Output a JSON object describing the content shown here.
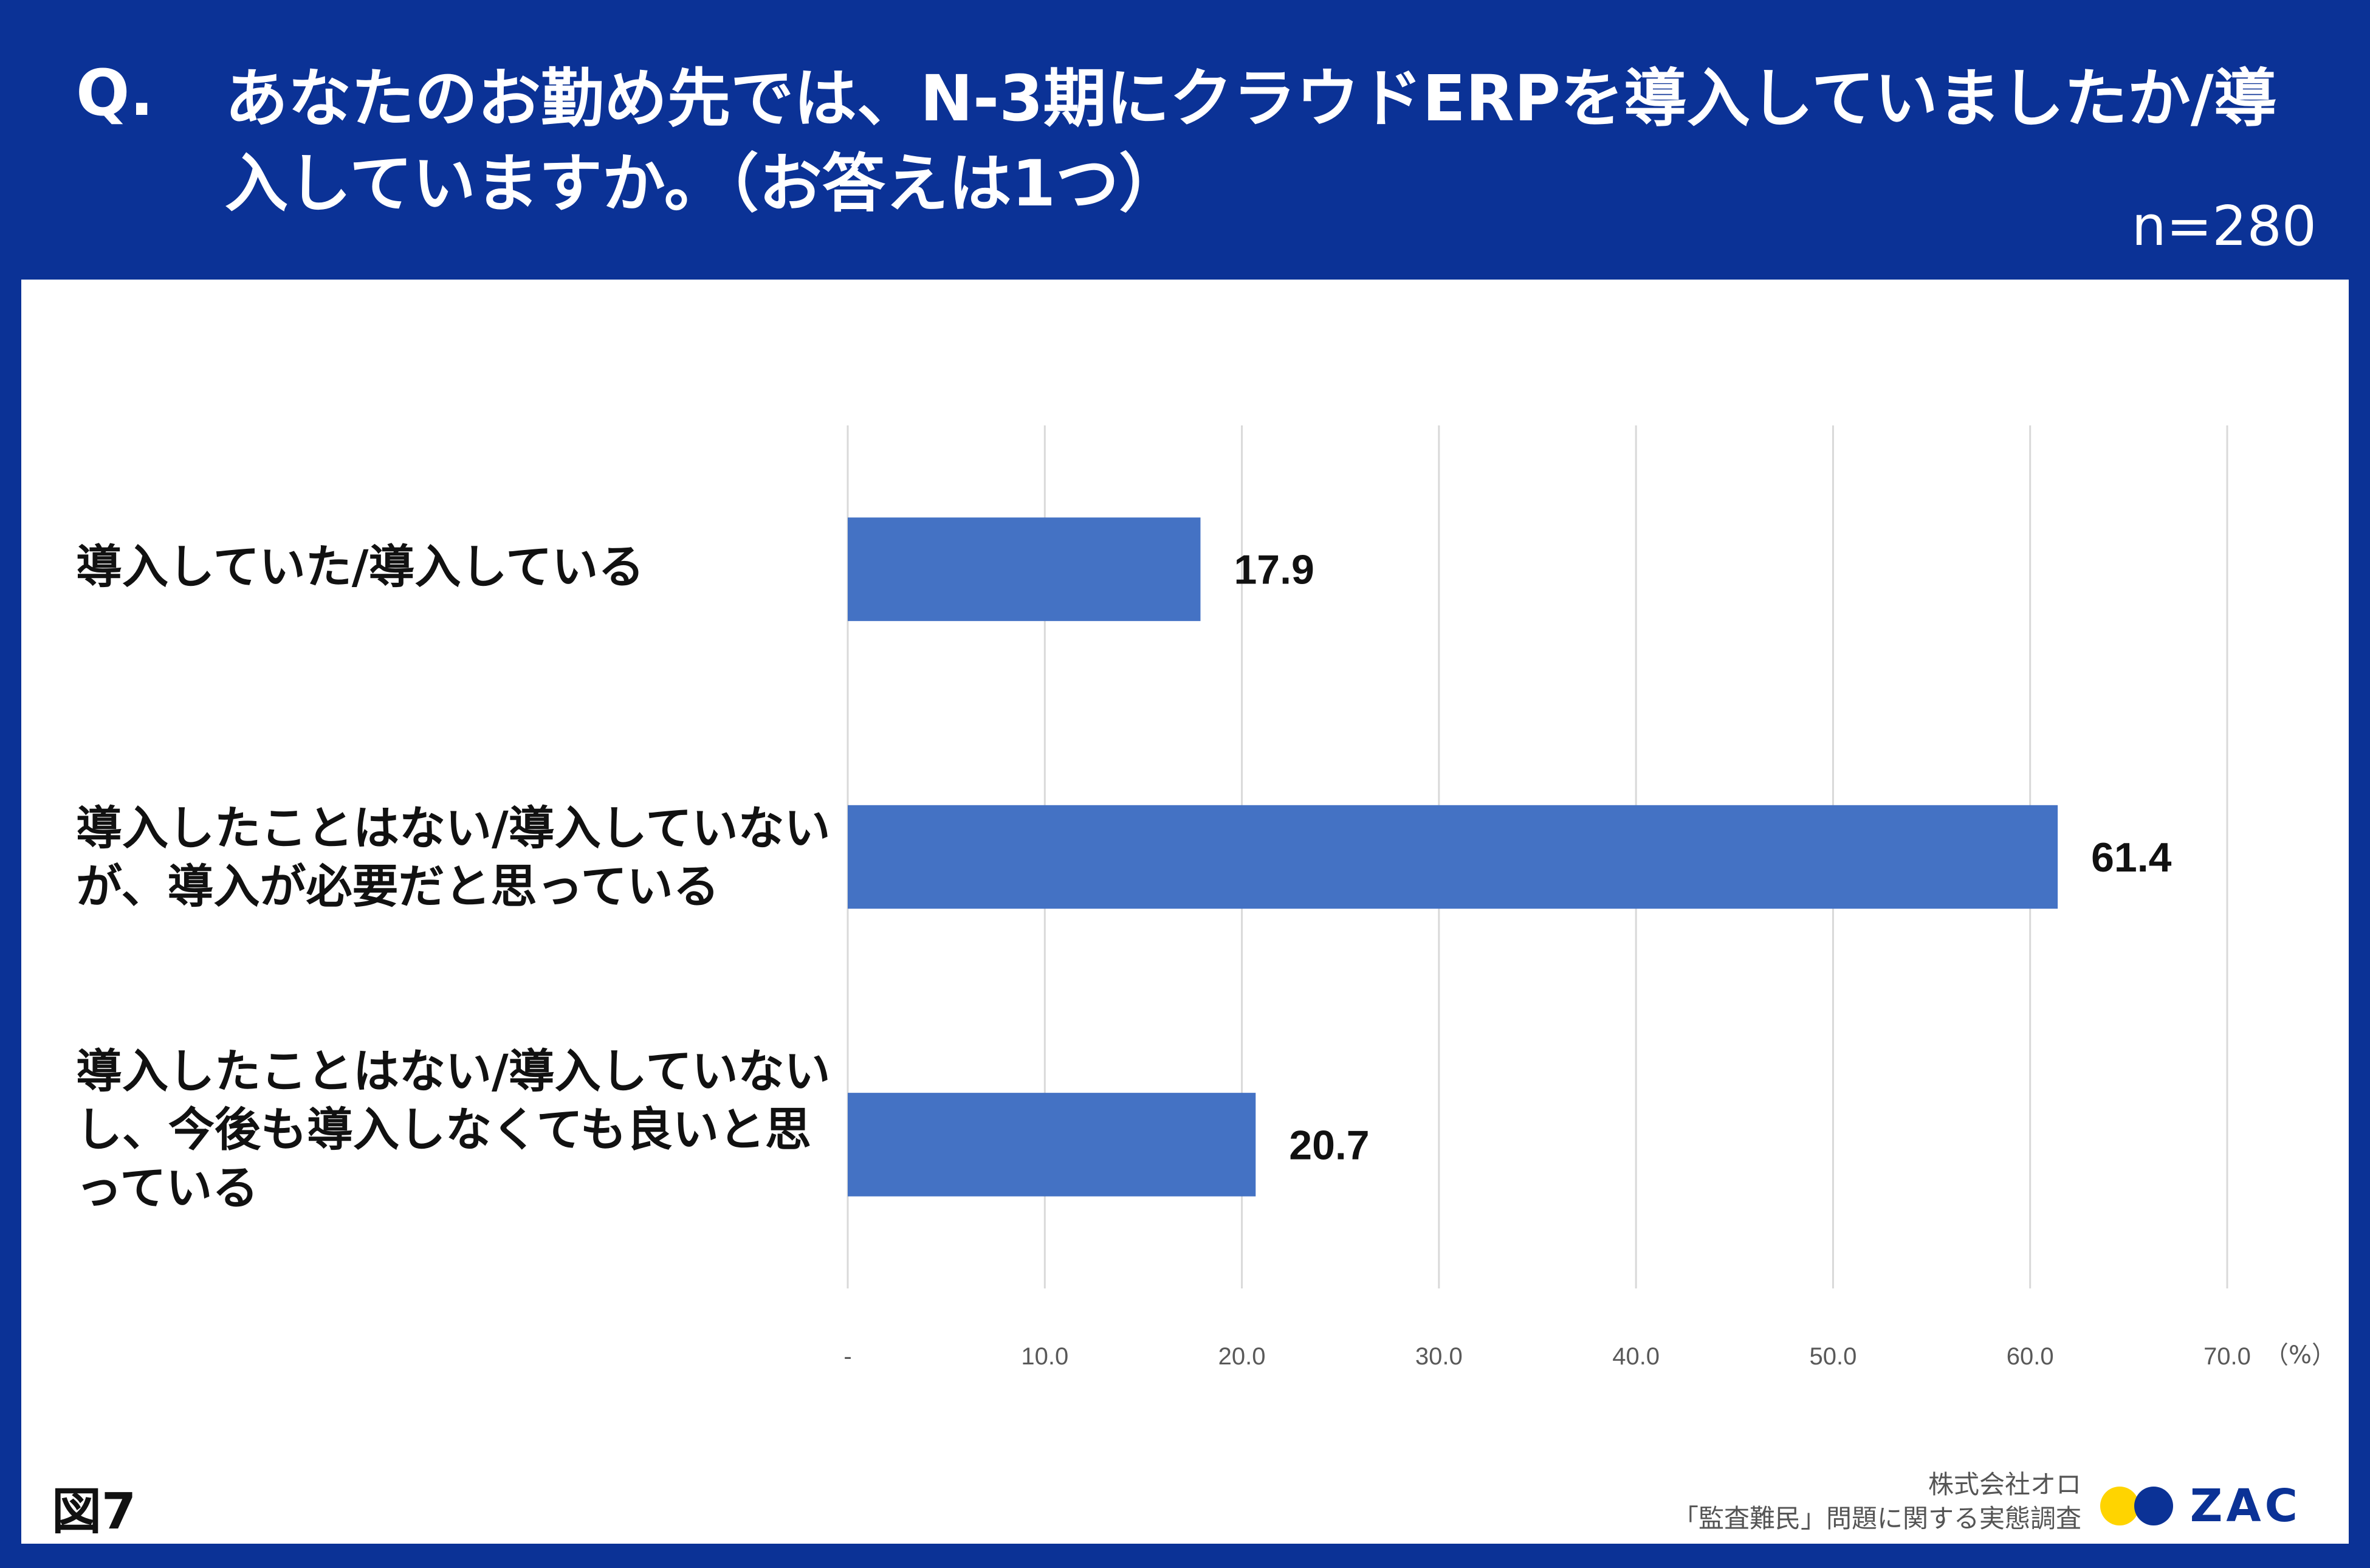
{
  "header": {
    "q_mark": "Q.",
    "title": "あなたのお勤め先では、N-3期にクラウドERPを導入していましたか/導入していますか。（お答えは1つ）",
    "sample_size": "n=280"
  },
  "footer": {
    "figure_label": "図7",
    "company": "株式会社オロ",
    "survey_title": "「監査難民」問題に関する実態調査",
    "logo_text": "ZAC"
  },
  "colors": {
    "background": "#0b3296",
    "bar": "#4472c4",
    "logo_yellow": "#ffd400"
  },
  "chart_data": {
    "type": "bar",
    "orientation": "horizontal",
    "categories": [
      "導入していた/導入している",
      "導入したことはない/導入していないが、導入が必要だと思っている",
      "導入したことはない/導入していないし、今後も導入しなくても良いと思っている"
    ],
    "values": [
      17.9,
      61.4,
      20.7
    ],
    "data_labels": [
      "17.9",
      "61.4",
      "20.7"
    ],
    "xlim": [
      0,
      70
    ],
    "x_ticks": [
      "-",
      "10.0",
      "20.0",
      "30.0",
      "40.0",
      "50.0",
      "60.0",
      "70.0"
    ],
    "unit_label": "（%）",
    "grid": true
  }
}
